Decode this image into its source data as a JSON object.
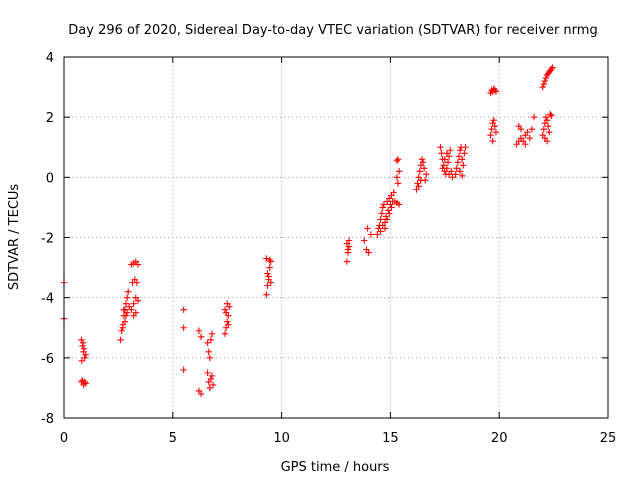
{
  "chart_data": {
    "type": "scatter",
    "title": "Day 296 of 2020, Sidereal Day-to-day VTEC variation (SDTVAR) for receiver nrmg",
    "xlabel": "GPS time / hours",
    "ylabel": "SDTVAR / TECUs",
    "xlim": [
      0,
      25
    ],
    "ylim": [
      -8,
      4
    ],
    "xticks": [
      0,
      5,
      10,
      15,
      20,
      25
    ],
    "yticks": [
      -8,
      -6,
      -4,
      -2,
      0,
      2,
      4
    ],
    "grid": true,
    "marker": "+",
    "color": "#ff0000",
    "series": [
      {
        "name": "SDTVAR",
        "points": [
          [
            0.0,
            -3.5
          ],
          [
            0.0,
            -4.7
          ],
          [
            0.8,
            -5.4
          ],
          [
            0.85,
            -5.6
          ],
          [
            0.9,
            -5.8
          ],
          [
            0.95,
            -6.0
          ],
          [
            1.0,
            -5.9
          ],
          [
            0.82,
            -6.1
          ],
          [
            0.88,
            -5.5
          ],
          [
            0.92,
            -5.7
          ],
          [
            0.8,
            -6.8
          ],
          [
            0.9,
            -6.9
          ],
          [
            1.0,
            -6.85
          ],
          [
            0.85,
            -6.75
          ],
          [
            0.95,
            -6.8
          ],
          [
            2.6,
            -5.4
          ],
          [
            2.65,
            -5.1
          ],
          [
            2.7,
            -4.9
          ],
          [
            2.75,
            -4.6
          ],
          [
            2.8,
            -4.4
          ],
          [
            2.85,
            -4.2
          ],
          [
            2.9,
            -4.0
          ],
          [
            2.95,
            -3.8
          ],
          [
            2.7,
            -5.0
          ],
          [
            2.8,
            -4.8
          ],
          [
            2.9,
            -4.5
          ],
          [
            3.0,
            -4.3
          ],
          [
            2.75,
            -4.4
          ],
          [
            2.85,
            -4.6
          ],
          [
            3.1,
            -4.4
          ],
          [
            3.2,
            -4.2
          ],
          [
            3.3,
            -4.0
          ],
          [
            3.4,
            -4.1
          ],
          [
            3.15,
            -3.5
          ],
          [
            3.25,
            -3.4
          ],
          [
            3.35,
            -3.5
          ],
          [
            3.1,
            -2.9
          ],
          [
            3.2,
            -2.85
          ],
          [
            3.3,
            -2.8
          ],
          [
            3.4,
            -2.9
          ],
          [
            3.2,
            -4.6
          ],
          [
            3.3,
            -4.5
          ],
          [
            5.5,
            -4.4
          ],
          [
            5.5,
            -5.0
          ],
          [
            5.5,
            -6.4
          ],
          [
            6.2,
            -5.1
          ],
          [
            6.3,
            -5.3
          ],
          [
            6.2,
            -7.1
          ],
          [
            6.3,
            -7.2
          ],
          [
            6.6,
            -5.5
          ],
          [
            6.65,
            -5.8
          ],
          [
            6.7,
            -6.0
          ],
          [
            6.75,
            -5.4
          ],
          [
            6.8,
            -5.2
          ],
          [
            6.6,
            -6.5
          ],
          [
            6.65,
            -6.8
          ],
          [
            6.7,
            -7.0
          ],
          [
            6.75,
            -6.7
          ],
          [
            6.8,
            -6.6
          ],
          [
            6.85,
            -6.9
          ],
          [
            7.4,
            -5.2
          ],
          [
            7.45,
            -5.0
          ],
          [
            7.5,
            -4.8
          ],
          [
            7.55,
            -4.6
          ],
          [
            7.4,
            -4.4
          ],
          [
            7.5,
            -4.2
          ],
          [
            7.6,
            -4.3
          ],
          [
            7.45,
            -4.5
          ],
          [
            7.55,
            -4.9
          ],
          [
            9.3,
            -3.9
          ],
          [
            9.35,
            -3.6
          ],
          [
            9.4,
            -3.3
          ],
          [
            9.45,
            -3.0
          ],
          [
            9.5,
            -2.8
          ],
          [
            9.3,
            -2.7
          ],
          [
            9.4,
            -3.4
          ],
          [
            9.5,
            -3.5
          ],
          [
            9.35,
            -3.2
          ],
          [
            9.45,
            -2.75
          ],
          [
            13.0,
            -2.8
          ],
          [
            13.05,
            -2.5
          ],
          [
            13.1,
            -2.3
          ],
          [
            13.0,
            -2.2
          ],
          [
            13.1,
            -2.1
          ],
          [
            13.05,
            -2.4
          ],
          [
            13.8,
            -2.1
          ],
          [
            13.9,
            -2.4
          ],
          [
            14.0,
            -2.5
          ],
          [
            14.1,
            -1.9
          ],
          [
            13.95,
            -1.7
          ],
          [
            14.4,
            -1.9
          ],
          [
            14.5,
            -1.6
          ],
          [
            14.55,
            -1.4
          ],
          [
            14.6,
            -1.2
          ],
          [
            14.65,
            -1.0
          ],
          [
            14.7,
            -0.9
          ],
          [
            14.75,
            -1.5
          ],
          [
            14.8,
            -1.3
          ],
          [
            14.85,
            -0.8
          ],
          [
            14.9,
            -1.1
          ],
          [
            14.95,
            -0.7
          ],
          [
            15.0,
            -0.9
          ],
          [
            15.05,
            -0.6
          ],
          [
            15.1,
            -0.8
          ],
          [
            15.15,
            -0.5
          ],
          [
            14.45,
            -1.7
          ],
          [
            14.55,
            -1.8
          ],
          [
            14.65,
            -1.6
          ],
          [
            14.75,
            -1.7
          ],
          [
            14.85,
            -1.4
          ],
          [
            14.95,
            -1.2
          ],
          [
            15.05,
            -1.0
          ],
          [
            15.2,
            -0.8
          ],
          [
            15.3,
            -0.85
          ],
          [
            15.4,
            -0.9
          ],
          [
            15.3,
            0.0
          ],
          [
            15.35,
            -0.2
          ],
          [
            15.4,
            0.2
          ],
          [
            15.3,
            0.55
          ],
          [
            15.35,
            0.6
          ],
          [
            16.2,
            -0.4
          ],
          [
            16.25,
            -0.2
          ],
          [
            16.3,
            0.0
          ],
          [
            16.35,
            0.2
          ],
          [
            16.4,
            0.4
          ],
          [
            16.45,
            0.6
          ],
          [
            16.5,
            0.5
          ],
          [
            16.55,
            0.3
          ],
          [
            16.6,
            -0.1
          ],
          [
            16.65,
            0.1
          ],
          [
            16.3,
            -0.3
          ],
          [
            16.4,
            -0.1
          ],
          [
            17.3,
            1.0
          ],
          [
            17.35,
            0.8
          ],
          [
            17.4,
            0.6
          ],
          [
            17.45,
            0.4
          ],
          [
            17.5,
            0.2
          ],
          [
            17.55,
            0.1
          ],
          [
            17.6,
            0.3
          ],
          [
            17.65,
            0.5
          ],
          [
            17.7,
            0.7
          ],
          [
            17.75,
            0.9
          ],
          [
            17.8,
            0.2
          ],
          [
            17.85,
            0.0
          ],
          [
            17.4,
            0.3
          ],
          [
            17.5,
            0.6
          ],
          [
            17.6,
            0.8
          ],
          [
            17.7,
            0.1
          ],
          [
            18.0,
            0.1
          ],
          [
            18.05,
            0.3
          ],
          [
            18.1,
            0.5
          ],
          [
            18.15,
            0.7
          ],
          [
            18.2,
            0.9
          ],
          [
            18.25,
            1.0
          ],
          [
            18.3,
            0.6
          ],
          [
            18.35,
            0.4
          ],
          [
            18.4,
            0.8
          ],
          [
            18.45,
            1.0
          ],
          [
            18.2,
            0.2
          ],
          [
            18.3,
            0.05
          ],
          [
            19.6,
            1.4
          ],
          [
            19.65,
            1.6
          ],
          [
            19.7,
            1.8
          ],
          [
            19.75,
            1.9
          ],
          [
            19.8,
            1.7
          ],
          [
            19.85,
            1.5
          ],
          [
            19.7,
            1.2
          ],
          [
            19.6,
            2.8
          ],
          [
            19.65,
            2.9
          ],
          [
            19.7,
            2.85
          ],
          [
            19.75,
            2.95
          ],
          [
            19.8,
            2.9
          ],
          [
            19.85,
            2.85
          ],
          [
            20.8,
            1.1
          ],
          [
            20.9,
            1.2
          ],
          [
            21.0,
            1.3
          ],
          [
            21.1,
            1.2
          ],
          [
            21.2,
            1.4
          ],
          [
            21.3,
            1.5
          ],
          [
            21.4,
            1.3
          ],
          [
            21.5,
            1.6
          ],
          [
            20.9,
            1.7
          ],
          [
            21.0,
            1.6
          ],
          [
            21.6,
            2.0
          ],
          [
            21.2,
            1.1
          ],
          [
            22.0,
            1.4
          ],
          [
            22.05,
            1.6
          ],
          [
            22.1,
            1.8
          ],
          [
            22.15,
            2.0
          ],
          [
            22.2,
            1.9
          ],
          [
            22.25,
            1.7
          ],
          [
            22.3,
            1.5
          ],
          [
            22.35,
            2.1
          ],
          [
            22.4,
            2.05
          ],
          [
            22.1,
            1.3
          ],
          [
            22.2,
            1.2
          ],
          [
            22.0,
            3.0
          ],
          [
            22.05,
            3.1
          ],
          [
            22.1,
            3.2
          ],
          [
            22.15,
            3.3
          ],
          [
            22.2,
            3.4
          ],
          [
            22.25,
            3.45
          ],
          [
            22.3,
            3.5
          ],
          [
            22.35,
            3.55
          ],
          [
            22.4,
            3.6
          ],
          [
            22.45,
            3.65
          ]
        ]
      }
    ]
  }
}
